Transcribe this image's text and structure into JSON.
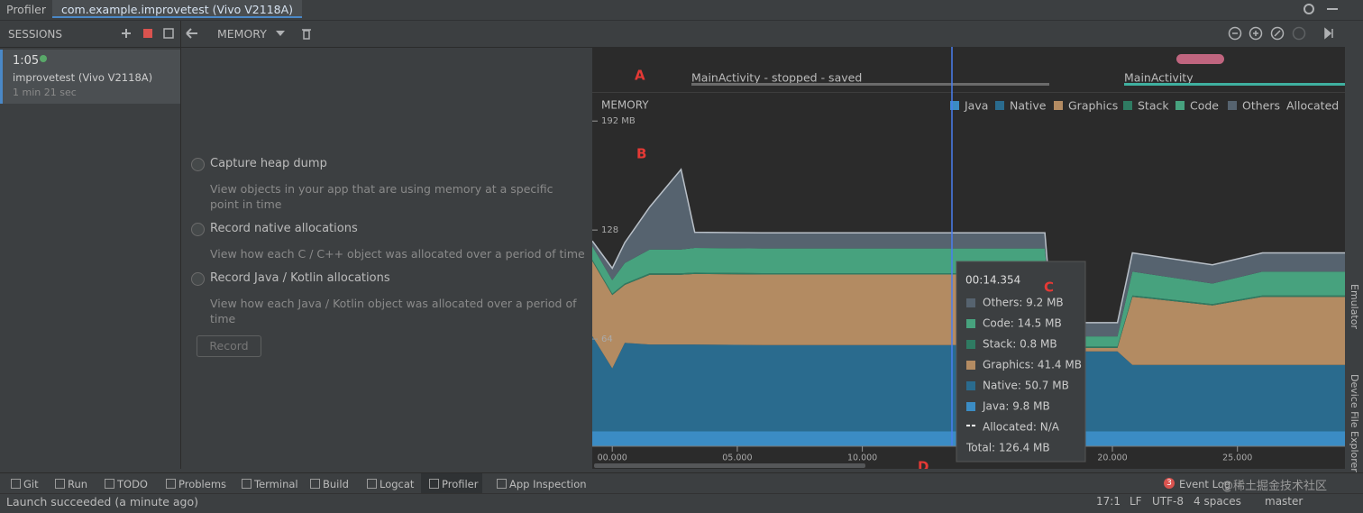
{
  "window": {
    "tabs": [
      "Profiler",
      "com.example.improvetest (Vivo V2118A)"
    ]
  },
  "sessions": {
    "title": "SESSIONS",
    "item": {
      "time": "1:05",
      "name": "improvetest (Vivo V2118A)",
      "duration": "1 min 21 sec"
    }
  },
  "toolbar": {
    "profiler": "MEMORY"
  },
  "options": [
    {
      "label": "Capture heap dump",
      "description": "View objects in your app that are using memory at a specific point in time"
    },
    {
      "label": "Record native allocations",
      "description": "View how each C / C++ object was allocated over a period of time"
    },
    {
      "label": "Record Java / Kotlin allocations",
      "description": "View how each Java / Kotlin object was allocated over a period of time"
    }
  ],
  "record_button": "Record",
  "activities": [
    "MainActivity - stopped - saved",
    "MainActivity"
  ],
  "annotations": [
    "A",
    "B",
    "C",
    "D"
  ],
  "chart_data": {
    "type": "area",
    "stacked": true,
    "title": "MEMORY",
    "x": [
      -0.8,
      0,
      0.5,
      1.5,
      2.75,
      3.3,
      6,
      10,
      14.354,
      17.3,
      17.6,
      20.2,
      20.8,
      24,
      26,
      29.3
    ],
    "series": [
      {
        "name": "Java",
        "color": "#3b8cc4",
        "values": [
          9.8,
          9.8,
          9.8,
          9.8,
          9.8,
          9.8,
          9.8,
          9.8,
          9.8,
          9.8,
          9.8,
          9.8,
          9.8,
          9.8,
          9.8,
          9.8
        ]
      },
      {
        "name": "Native",
        "color": "#2a6b8e",
        "values": [
          56,
          37,
          52,
          51,
          51,
          51,
          50.7,
          50.7,
          50.7,
          50.7,
          47,
          47,
          39,
          39,
          39,
          39
        ]
      },
      {
        "name": "Graphics",
        "color": "#b38b62",
        "values": [
          44,
          43,
          34,
          41,
          41,
          41.4,
          41.4,
          41.4,
          41.4,
          41.4,
          2,
          2,
          40,
          35,
          40,
          40
        ]
      },
      {
        "name": "Stack",
        "color": "#2f7b62",
        "values": [
          0.8,
          0.8,
          0.8,
          0.8,
          0.8,
          0.8,
          0.8,
          0.8,
          0.8,
          0.8,
          0.8,
          0.8,
          0.8,
          0.8,
          0.8,
          0.8
        ]
      },
      {
        "name": "Code",
        "color": "#47a27e",
        "values": [
          8,
          8,
          12,
          14,
          14,
          14.5,
          14.5,
          14.5,
          14.5,
          14.5,
          6,
          6,
          14,
          12,
          14,
          14
        ]
      },
      {
        "name": "Others",
        "color": "#56636f",
        "values": [
          3,
          7,
          12,
          25,
          47,
          9.2,
          9.2,
          9.2,
          9.2,
          9.2,
          8,
          8,
          11,
          11,
          11,
          11
        ]
      }
    ],
    "legend_extra": "Allocated",
    "xlim": [
      -0.8,
      29.3
    ],
    "xticks": [
      {
        "value": 0,
        "label": "00.000"
      },
      {
        "value": 5,
        "label": "05.000"
      },
      {
        "value": 10,
        "label": "10.000"
      },
      {
        "value": 20,
        "label": "20.000"
      },
      {
        "value": 25,
        "label": "25.000"
      }
    ],
    "ylim": [
      0,
      208
    ],
    "yticks": [
      {
        "value": 64,
        "label": "64"
      },
      {
        "value": 128,
        "label": "128"
      },
      {
        "value": 192,
        "label": "192 MB"
      }
    ]
  },
  "tooltip": {
    "time": "00:14.354",
    "rows": [
      "Others: 9.2 MB",
      "Code: 14.5 MB",
      "Stack: 0.8 MB",
      "Graphics: 41.4 MB",
      "Native: 50.7 MB",
      "Java: 9.8 MB",
      "Allocated: N/A"
    ],
    "total": "Total: 126.4 MB"
  },
  "bottom_tabs": [
    "Git",
    "Run",
    "TODO",
    "Problems",
    "Terminal",
    "Build",
    "Logcat",
    "Profiler",
    "App Inspection"
  ],
  "event_log": {
    "badge": 3,
    "label": "Event Log"
  },
  "watermark": "@稀土掘金技术社区",
  "side_tabs": [
    "Emulator",
    "Device File Explorer"
  ],
  "status": {
    "message": "Launch succeeded (a minute ago)",
    "items": [
      "17:1",
      "LF",
      "UTF-8",
      "4 spaces",
      "master"
    ]
  }
}
